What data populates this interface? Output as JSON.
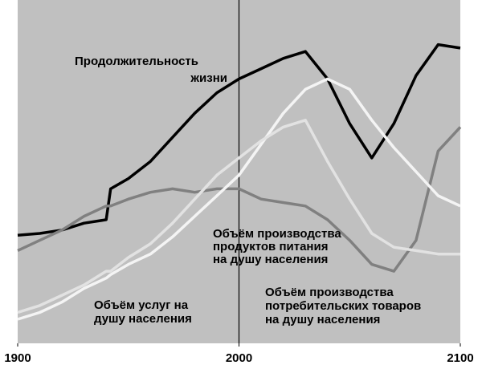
{
  "chart_data": {
    "type": "line",
    "x": [
      1900,
      1910,
      1920,
      1930,
      1940,
      1942,
      1950,
      1960,
      1970,
      1980,
      1990,
      2000,
      2010,
      2020,
      2030,
      2040,
      2050,
      2060,
      2070,
      2080,
      2090,
      2100
    ],
    "xlim": [
      1900,
      2100
    ],
    "xticks": [
      1900,
      2000,
      2100
    ],
    "ylim": [
      0,
      100
    ],
    "vline": 2000,
    "background": "#c0c0c0",
    "series": [
      {
        "label": [
          "Продолжительность",
          "жизни"
        ],
        "color": "#000000",
        "values": [
          31.5,
          32,
          33,
          35,
          36,
          45,
          48,
          53,
          60,
          67,
          73,
          77,
          80,
          83,
          85,
          77,
          64,
          54,
          64,
          78,
          87,
          86
        ]
      },
      {
        "label": [
          "Объём производства",
          "продуктов питания",
          "на душу населения"
        ],
        "color": "#808080",
        "values": [
          27,
          30,
          33,
          37,
          40,
          40,
          42,
          44,
          45,
          44,
          45,
          45,
          42,
          41,
          40,
          36,
          30,
          23,
          21,
          30,
          56,
          63
        ]
      },
      {
        "label": [
          "Объём услуг на",
          "душу населения"
        ],
        "color": "#f4f4f4",
        "values": [
          7,
          9,
          12,
          16,
          19,
          20,
          23,
          26,
          31,
          37,
          43,
          49,
          58,
          67,
          74,
          77,
          74,
          65,
          57,
          50,
          43,
          40
        ]
      },
      {
        "label": [
          "Объём производства",
          "потребительских товаров",
          "на душу населения"
        ],
        "color": "#e2e2e2",
        "values": [
          9,
          11,
          14,
          17,
          21,
          21,
          25,
          29,
          35,
          42,
          49,
          54,
          59,
          63,
          65,
          53,
          42,
          32,
          28,
          27,
          26,
          26
        ]
      }
    ]
  }
}
